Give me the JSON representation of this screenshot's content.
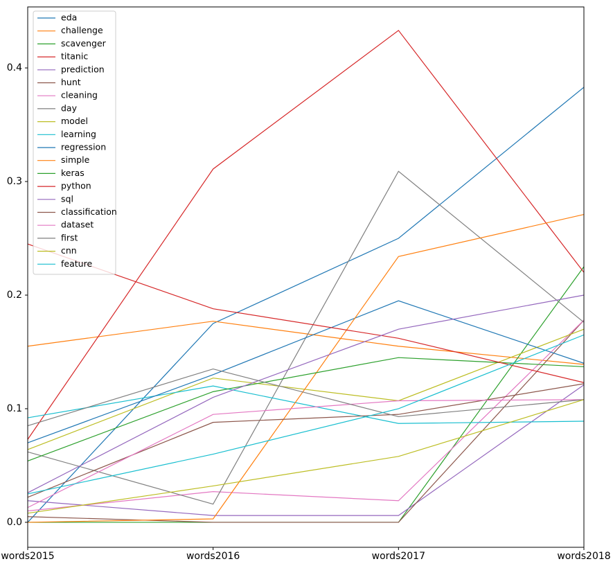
{
  "chart_data": {
    "type": "line",
    "categories": [
      "words2015",
      "words2016",
      "words2017",
      "words2018"
    ],
    "series": [
      {
        "name": "eda",
        "color": "#1f77b4",
        "values": [
          0,
          0.175,
          0.25,
          0.383
        ]
      },
      {
        "name": "challenge",
        "color": "#ff7f0e",
        "values": [
          0.155,
          0.177,
          0.155,
          0.139
        ]
      },
      {
        "name": "scavenger",
        "color": "#2ca02c",
        "values": [
          0,
          0,
          0,
          0.225
        ]
      },
      {
        "name": "titanic",
        "color": "#d62728",
        "values": [
          0.073,
          0.311,
          0.433,
          0.22
        ]
      },
      {
        "name": "prediction",
        "color": "#9467bd",
        "values": [
          0.019,
          0.006,
          0.006,
          0.121
        ]
      },
      {
        "name": "hunt",
        "color": "#8c564b",
        "values": [
          0.005,
          0,
          0,
          0.178
        ]
      },
      {
        "name": "cleaning",
        "color": "#e377c2",
        "values": [
          0.01,
          0.027,
          0.019,
          0.178
        ]
      },
      {
        "name": "day",
        "color": "#7f7f7f",
        "values": [
          0.062,
          0.016,
          0.309,
          0.176
        ]
      },
      {
        "name": "model",
        "color": "#bcbd22",
        "values": [
          0.064,
          0.127,
          0.107,
          0.17
        ]
      },
      {
        "name": "learning",
        "color": "#17becf",
        "values": [
          0.092,
          0.12,
          0.087,
          0.089
        ]
      },
      {
        "name": "regression",
        "color": "#1f77b4",
        "values": [
          0.07,
          0.13,
          0.195,
          0.14
        ]
      },
      {
        "name": "simple",
        "color": "#ff7f0e",
        "values": [
          0,
          0.003,
          0.234,
          0.271
        ]
      },
      {
        "name": "keras",
        "color": "#2ca02c",
        "values": [
          0.054,
          0.115,
          0.145,
          0.137
        ]
      },
      {
        "name": "python",
        "color": "#d62728",
        "values": [
          0.245,
          0.188,
          0.162,
          0.123
        ]
      },
      {
        "name": "sql",
        "color": "#9467bd",
        "values": [
          0.026,
          0.11,
          0.17,
          0.2
        ]
      },
      {
        "name": "classification",
        "color": "#8c564b",
        "values": [
          0.022,
          0.088,
          0.095,
          0.122
        ]
      },
      {
        "name": "dataset",
        "color": "#e377c2",
        "values": [
          0.013,
          0.095,
          0.107,
          0.108
        ]
      },
      {
        "name": "first",
        "color": "#7f7f7f",
        "values": [
          0.085,
          0.135,
          0.093,
          0.108
        ]
      },
      {
        "name": "cnn",
        "color": "#bcbd22",
        "values": [
          0.008,
          0.032,
          0.058,
          0.108
        ]
      },
      {
        "name": "feature",
        "color": "#17becf",
        "values": [
          0.025,
          0.06,
          0.1,
          0.165
        ]
      }
    ],
    "ylim": [
      -0.022,
      0.4537
    ],
    "yticks": [
      {
        "value": 0,
        "label": "0.0"
      },
      0.1,
      0.2,
      0.3,
      0.4
    ],
    "legend": "upper left"
  }
}
